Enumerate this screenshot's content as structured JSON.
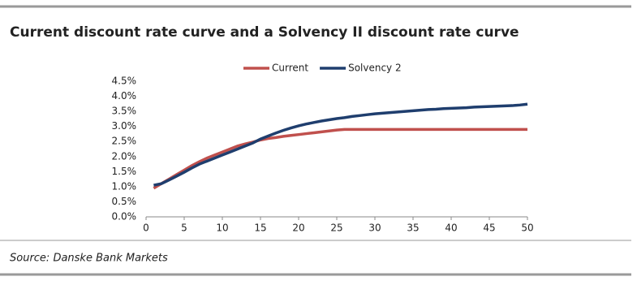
{
  "chart_data": {
    "type": "line",
    "title": "Current discount rate curve and a Solvency II discount rate curve",
    "source": "Source: Danske Bank Markets",
    "x": [
      1,
      2,
      3,
      4,
      5,
      6,
      7,
      8,
      9,
      10,
      11,
      12,
      13,
      14,
      15,
      16,
      17,
      18,
      19,
      20,
      21,
      22,
      23,
      24,
      25,
      26,
      27,
      28,
      29,
      30,
      31,
      32,
      33,
      34,
      35,
      36,
      37,
      38,
      39,
      40,
      41,
      42,
      43,
      44,
      45,
      46,
      47,
      48,
      49,
      50
    ],
    "series": [
      {
        "name": "Current",
        "color": "#c0504d",
        "values": [
          0.95,
          1.1,
          1.25,
          1.4,
          1.55,
          1.7,
          1.83,
          1.95,
          2.05,
          2.15,
          2.25,
          2.35,
          2.42,
          2.48,
          2.55,
          2.6,
          2.63,
          2.67,
          2.7,
          2.73,
          2.76,
          2.79,
          2.82,
          2.85,
          2.88,
          2.9,
          2.9,
          2.9,
          2.9,
          2.9,
          2.9,
          2.9,
          2.9,
          2.9,
          2.9,
          2.9,
          2.9,
          2.9,
          2.9,
          2.9,
          2.9,
          2.9,
          2.9,
          2.9,
          2.9,
          2.9,
          2.9,
          2.9,
          2.9,
          2.9
        ]
      },
      {
        "name": "Solvency 2",
        "color": "#1f3e6e",
        "values": [
          1.05,
          1.1,
          1.22,
          1.35,
          1.48,
          1.62,
          1.75,
          1.85,
          1.95,
          2.05,
          2.15,
          2.25,
          2.35,
          2.45,
          2.58,
          2.68,
          2.78,
          2.87,
          2.95,
          3.02,
          3.08,
          3.13,
          3.18,
          3.22,
          3.26,
          3.29,
          3.33,
          3.36,
          3.39,
          3.42,
          3.44,
          3.46,
          3.48,
          3.5,
          3.52,
          3.54,
          3.56,
          3.57,
          3.59,
          3.6,
          3.61,
          3.62,
          3.64,
          3.65,
          3.66,
          3.67,
          3.68,
          3.69,
          3.71,
          3.74
        ]
      }
    ],
    "xlim": [
      0,
      50
    ],
    "xticks": [
      0,
      5,
      10,
      15,
      20,
      25,
      30,
      35,
      40,
      45,
      50
    ],
    "ylim": [
      0,
      4.5
    ],
    "yticks": [
      {
        "value": 0,
        "label": "0.0%"
      },
      {
        "value": 0.5,
        "label": "0.5%"
      },
      {
        "value": 1,
        "label": "1.0%"
      },
      {
        "value": 1.5,
        "label": "1.5%"
      },
      {
        "value": 2,
        "label": "2.0%"
      },
      {
        "value": 2.5,
        "label": "2.5%"
      },
      {
        "value": 3,
        "label": "3.0%"
      },
      {
        "value": 3.5,
        "label": "3.5%"
      },
      {
        "value": 4,
        "label": "4.0%"
      },
      {
        "value": 4.5,
        "label": "4.5%"
      }
    ],
    "legend": "top"
  }
}
